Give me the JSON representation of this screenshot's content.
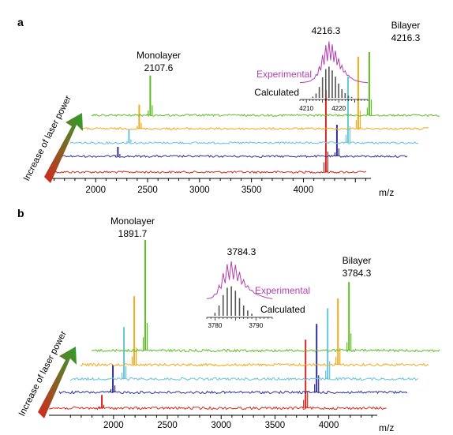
{
  "colors": {
    "red": "#d7261e",
    "navy": "#2e3192",
    "cyan": "#63c3e0",
    "orange": "#f7a81b",
    "green": "#5bbf21",
    "magenta": "#b23fb0",
    "gray": "#555555"
  },
  "laser_label": "Increase of laser power",
  "chart_data": [
    {
      "panel": "a",
      "type": "line",
      "xlabel": "m/z",
      "xlim": [
        1550,
        4650
      ],
      "xticks": [
        2000,
        2500,
        3000,
        3500,
        4000
      ],
      "series": [
        {
          "color": "red",
          "peaks": [
            {
              "x": 4216.3,
              "h": 1.3
            }
          ]
        },
        {
          "color": "navy",
          "peaks": [
            {
              "x": 2107.6,
              "h": 0.15
            },
            {
              "x": 4216.3,
              "h": 0.5
            }
          ]
        },
        {
          "color": "cyan",
          "peaks": [
            {
              "x": 2107.6,
              "h": 0.22
            },
            {
              "x": 4216.3,
              "h": 1.05
            }
          ]
        },
        {
          "color": "orange",
          "peaks": [
            {
              "x": 2107.6,
              "h": 0.38
            },
            {
              "x": 4216.3,
              "h": 1.14
            }
          ]
        },
        {
          "color": "green",
          "peaks": [
            {
              "x": 2107.6,
              "h": 0.63
            },
            {
              "x": 4216.3,
              "h": 1.0
            }
          ]
        }
      ],
      "labels": {
        "monolayer": {
          "name": "Monolayer",
          "value": "2107.6"
        },
        "bilayer": {
          "name": "Bilayer",
          "value": "4216.3"
        }
      },
      "inset": {
        "title": "4216.3",
        "experimental_label": "Experimental",
        "calculated_label": "Calculated",
        "xticks": [
          4210,
          4220
        ],
        "xlim": [
          4208,
          4229
        ],
        "calculated": {
          "x": [
            4212,
            4213,
            4214,
            4215,
            4216,
            4217,
            4218,
            4219,
            4220,
            4221,
            4222,
            4223,
            4224
          ],
          "y": [
            0.04,
            0.14,
            0.35,
            0.66,
            0.92,
            1.0,
            0.88,
            0.68,
            0.46,
            0.28,
            0.15,
            0.07,
            0.03
          ]
        }
      }
    },
    {
      "panel": "b",
      "type": "line",
      "xlabel": "m/z",
      "xlim": [
        1400,
        4450
      ],
      "xticks": [
        2000,
        2500,
        3000,
        3500,
        4000
      ],
      "series": [
        {
          "color": "red",
          "peaks": [
            {
              "x": 1891.7,
              "h": 0.12
            },
            {
              "x": 3784.3,
              "h": 0.62
            }
          ]
        },
        {
          "color": "navy",
          "peaks": [
            {
              "x": 1891.7,
              "h": 0.25
            },
            {
              "x": 3784.3,
              "h": 0.62
            }
          ]
        },
        {
          "color": "cyan",
          "peaks": [
            {
              "x": 1891.7,
              "h": 0.47
            },
            {
              "x": 3784.3,
              "h": 0.64
            }
          ]
        },
        {
          "color": "orange",
          "peaks": [
            {
              "x": 1891.7,
              "h": 0.62
            },
            {
              "x": 3784.3,
              "h": 0.6
            }
          ]
        },
        {
          "color": "green",
          "peaks": [
            {
              "x": 1891.7,
              "h": 1.0
            },
            {
              "x": 3784.3,
              "h": 0.62
            }
          ]
        }
      ],
      "labels": {
        "monolayer": {
          "name": "Monolayer",
          "value": "1891.7"
        },
        "bilayer": {
          "name": "Bilayer",
          "value": "3784.3"
        }
      },
      "inset": {
        "title": "3784.3",
        "experimental_label": "Experimental",
        "calculated_label": "Calculated",
        "xticks": [
          3780,
          3790
        ],
        "xlim": [
          3778,
          3794
        ],
        "calculated": {
          "x": [
            3780,
            3781,
            3782,
            3783,
            3784,
            3785,
            3786,
            3787,
            3788,
            3789
          ],
          "y": [
            0.1,
            0.35,
            0.7,
            0.95,
            1.0,
            0.85,
            0.6,
            0.35,
            0.18,
            0.07
          ]
        }
      }
    }
  ]
}
